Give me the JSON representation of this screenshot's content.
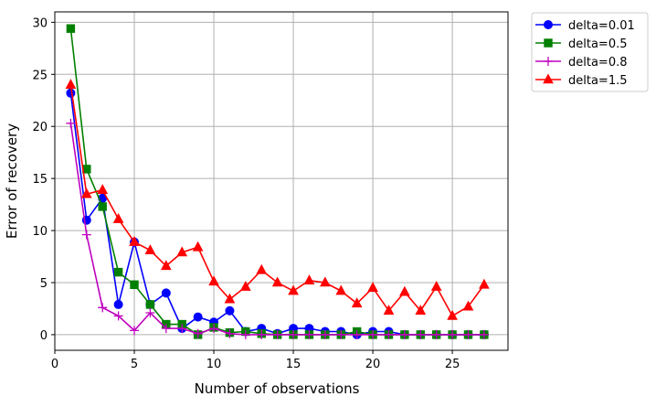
{
  "chart_data": {
    "type": "line",
    "xlabel": "Number of observations",
    "ylabel": "Error of recovery",
    "xlim": [
      0,
      28.5
    ],
    "ylim": [
      -1.5,
      31
    ],
    "xticks": [
      0,
      5,
      10,
      15,
      20,
      25
    ],
    "yticks": [
      0,
      5,
      10,
      15,
      20,
      25,
      30
    ],
    "grid": true,
    "legend_position": "outside-top-right",
    "x": [
      1,
      2,
      3,
      4,
      5,
      6,
      7,
      8,
      9,
      10,
      11,
      12,
      13,
      14,
      15,
      16,
      17,
      18,
      19,
      20,
      21,
      22,
      23,
      24,
      25,
      26,
      27
    ],
    "series": [
      {
        "name": "delta=0.01",
        "color": "#0000ff",
        "marker": "circle",
        "values": [
          23.2,
          11.0,
          13.1,
          2.9,
          8.9,
          2.9,
          4.0,
          0.6,
          1.7,
          1.2,
          2.3,
          0.3,
          0.6,
          0.1,
          0.6,
          0.6,
          0.3,
          0.3,
          0.0,
          0.3,
          0.3,
          0.0,
          0.0,
          0.0,
          0.0,
          0.0,
          0.0
        ]
      },
      {
        "name": "delta=0.5",
        "color": "#008000",
        "marker": "square",
        "values": [
          29.4,
          15.9,
          12.3,
          6.0,
          4.8,
          2.9,
          1.0,
          1.0,
          0.0,
          0.7,
          0.2,
          0.3,
          0.1,
          0.0,
          0.0,
          0.0,
          0.0,
          0.0,
          0.3,
          0.0,
          0.0,
          0.0,
          0.0,
          0.0,
          0.0,
          0.0,
          0.0
        ]
      },
      {
        "name": "delta=0.8",
        "color": "#bf00bf",
        "marker": "plus",
        "values": [
          20.3,
          9.6,
          2.6,
          1.8,
          0.4,
          2.1,
          0.6,
          0.6,
          0.1,
          0.6,
          0.1,
          0.0,
          0.0,
          0.0,
          0.0,
          0.0,
          0.0,
          0.0,
          0.0,
          0.0,
          0.0,
          0.0,
          0.0,
          0.0,
          0.0,
          0.0,
          0.0
        ]
      },
      {
        "name": "delta=1.5",
        "color": "#ff0000",
        "marker": "triangle",
        "values": [
          24.0,
          13.5,
          13.9,
          11.1,
          8.9,
          8.1,
          6.6,
          7.9,
          8.4,
          5.1,
          3.4,
          4.6,
          6.2,
          5.0,
          4.2,
          5.2,
          5.0,
          4.2,
          3.0,
          4.5,
          2.3,
          4.1,
          2.3,
          4.6,
          1.8,
          2.7,
          4.8
        ]
      }
    ]
  }
}
